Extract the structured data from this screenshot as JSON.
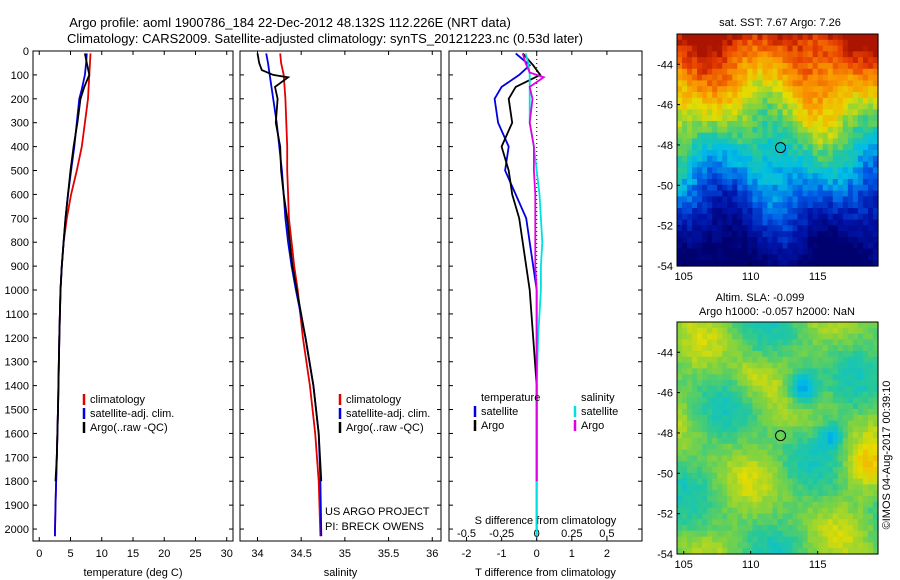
{
  "title_line1": "Argo profile: aoml 1900786_184 22-Dec-2012 48.132S 112.226E (NRT data)",
  "title_line2": "Climatology: CARS2009. Satellite-adjusted climatology: synTS_20121223.nc (0.53d later)",
  "credit_line1": "US ARGO PROJECT",
  "credit_line2": "PI: BRECK OWENS",
  "imos_stamp": "©IMOS 04-Aug-2017 00:39:10",
  "sst_title": "sat. SST: 7.67 Argo: 7.26",
  "sla_title1": "Altim. SLA: -0.099",
  "sla_title2": "Argo h1000: -0.057 h2000: NaN",
  "colors": {
    "climatology": "#e00000",
    "satellite": "#0000e0",
    "argo": "#000000",
    "sat_s": "#00e0e0",
    "argo_s": "#e000e0"
  },
  "chart_data": [
    {
      "type": "line",
      "xlabel": "temperature (deg C)",
      "xlim": [
        -1,
        31
      ],
      "xticks": [
        "0",
        "5",
        "10",
        "15",
        "20",
        "25",
        "30"
      ],
      "ylim": [
        0,
        2050
      ],
      "yticks": [
        "0",
        "100",
        "200",
        "300",
        "400",
        "500",
        "600",
        "700",
        "800",
        "900",
        "1000",
        "1100",
        "1200",
        "1300",
        "1400",
        "1500",
        "1600",
        "1700",
        "1800",
        "1900",
        "2000"
      ],
      "legend": [
        "climatology",
        "satellite-adj. clim.",
        "Argo(..raw -QC)"
      ],
      "series": [
        {
          "name": "climatology",
          "color": "#e00000",
          "points": [
            [
              8.2,
              10
            ],
            [
              8.0,
              100
            ],
            [
              7.8,
              200
            ],
            [
              7.3,
              300
            ],
            [
              6.8,
              400
            ],
            [
              6.0,
              500
            ],
            [
              5.1,
              600
            ],
            [
              4.4,
              700
            ],
            [
              3.9,
              800
            ],
            [
              3.6,
              900
            ],
            [
              3.4,
              1000
            ],
            [
              3.2,
              1200
            ],
            [
              3.0,
              1500
            ],
            [
              2.8,
              1700
            ],
            [
              2.6,
              1900
            ],
            [
              2.5,
              2030
            ]
          ]
        },
        {
          "name": "satellite-adj. clim.",
          "color": "#0000e0",
          "points": [
            [
              7.6,
              10
            ],
            [
              7.5,
              50
            ],
            [
              7.3,
              100
            ],
            [
              6.8,
              160
            ],
            [
              6.4,
              200
            ],
            [
              6.0,
              300
            ],
            [
              5.6,
              400
            ],
            [
              5.1,
              500
            ],
            [
              4.6,
              600
            ],
            [
              4.2,
              700
            ],
            [
              3.9,
              800
            ],
            [
              3.6,
              900
            ],
            [
              3.4,
              1000
            ],
            [
              3.2,
              1200
            ],
            [
              3.0,
              1500
            ],
            [
              2.8,
              1700
            ],
            [
              2.6,
              1900
            ],
            [
              2.5,
              2030
            ]
          ]
        },
        {
          "name": "Argo(..raw -QC)",
          "color": "#000000",
          "points": [
            [
              7.3,
              10
            ],
            [
              7.6,
              50
            ],
            [
              8.0,
              100
            ],
            [
              7.2,
              150
            ],
            [
              6.6,
              200
            ],
            [
              6.1,
              300
            ],
            [
              5.5,
              400
            ],
            [
              5.0,
              500
            ],
            [
              4.6,
              600
            ],
            [
              4.2,
              700
            ],
            [
              3.9,
              800
            ],
            [
              3.6,
              900
            ],
            [
              3.4,
              1000
            ],
            [
              3.2,
              1200
            ],
            [
              3.0,
              1500
            ],
            [
              2.8,
              1700
            ],
            [
              2.6,
              1800
            ]
          ]
        }
      ]
    },
    {
      "type": "line",
      "xlabel": "salinity",
      "xlim": [
        33.8,
        36.1
      ],
      "xticks": [
        "34",
        "34.5",
        "35",
        "35.5",
        "36"
      ],
      "ylim": [
        0,
        2050
      ],
      "legend": [
        "climatology",
        "satellite-adj. clim.",
        "Argo(..raw -QC)"
      ],
      "series": [
        {
          "name": "climatology",
          "color": "#e00000",
          "points": [
            [
              34.26,
              10
            ],
            [
              34.27,
              50
            ],
            [
              34.3,
              100
            ],
            [
              34.32,
              200
            ],
            [
              34.33,
              300
            ],
            [
              34.34,
              400
            ],
            [
              34.34,
              500
            ],
            [
              34.35,
              600
            ],
            [
              34.36,
              700
            ],
            [
              34.39,
              800
            ],
            [
              34.42,
              900
            ],
            [
              34.46,
              1000
            ],
            [
              34.52,
              1200
            ],
            [
              34.6,
              1400
            ],
            [
              34.66,
              1600
            ],
            [
              34.7,
              1800
            ],
            [
              34.72,
              2030
            ]
          ]
        },
        {
          "name": "satellite-adj. clim.",
          "color": "#0000e0",
          "points": [
            [
              34.1,
              10
            ],
            [
              34.12,
              50
            ],
            [
              34.14,
              100
            ],
            [
              34.18,
              200
            ],
            [
              34.22,
              300
            ],
            [
              34.25,
              400
            ],
            [
              34.28,
              500
            ],
            [
              34.3,
              600
            ],
            [
              34.32,
              700
            ],
            [
              34.35,
              800
            ],
            [
              34.39,
              900
            ],
            [
              34.44,
              1000
            ],
            [
              34.55,
              1200
            ],
            [
              34.64,
              1400
            ],
            [
              34.7,
              1600
            ],
            [
              34.72,
              1800
            ],
            [
              34.73,
              2030
            ]
          ]
        },
        {
          "name": "Argo(..raw -QC)",
          "color": "#000000",
          "points": [
            [
              34.0,
              10
            ],
            [
              34.02,
              50
            ],
            [
              34.05,
              80
            ],
            [
              34.18,
              100
            ],
            [
              34.35,
              110
            ],
            [
              34.2,
              150
            ],
            [
              34.23,
              200
            ],
            [
              34.21,
              300
            ],
            [
              34.26,
              400
            ],
            [
              34.27,
              500
            ],
            [
              34.3,
              600
            ],
            [
              34.34,
              700
            ],
            [
              34.37,
              800
            ],
            [
              34.4,
              900
            ],
            [
              34.45,
              1000
            ],
            [
              34.55,
              1200
            ],
            [
              34.64,
              1400
            ],
            [
              34.7,
              1600
            ],
            [
              34.73,
              1800
            ]
          ]
        }
      ]
    },
    {
      "type": "line",
      "xlabel": "T difference from climatology",
      "xlim": [
        -2.5,
        3.0
      ],
      "xticks": [
        "-2",
        "-1",
        "0",
        "1",
        "2"
      ],
      "top_xlabel": "S difference from climatology",
      "top_xticks": [
        "-0.5",
        "-0.25",
        "0",
        "0.25",
        "0.5"
      ],
      "top_xlim": [
        -0.625,
        0.75
      ],
      "ylim": [
        0,
        2050
      ],
      "legend_left_title": "temperature",
      "legend_right_title": "salinity",
      "legend_left": [
        "satellite",
        "Argo"
      ],
      "legend_right": [
        "satellite",
        "Argo"
      ],
      "series": [
        {
          "name": "temperature satellite",
          "color": "#0000e0",
          "axis": "T",
          "points": [
            [
              -0.6,
              10
            ],
            [
              -0.2,
              60
            ],
            [
              -0.5,
              100
            ],
            [
              -1.0,
              150
            ],
            [
              -1.2,
              200
            ],
            [
              -1.1,
              300
            ],
            [
              -0.8,
              400
            ],
            [
              -0.9,
              500
            ],
            [
              -0.6,
              600
            ],
            [
              -0.3,
              700
            ],
            [
              -0.2,
              800
            ],
            [
              -0.1,
              900
            ],
            [
              0,
              1000
            ],
            [
              0,
              1300
            ],
            [
              0,
              1600
            ],
            [
              0,
              1800
            ],
            [
              0,
              2030
            ]
          ]
        },
        {
          "name": "temperature Argo",
          "color": "#000000",
          "axis": "T",
          "points": [
            [
              -0.4,
              10
            ],
            [
              -0.1,
              60
            ],
            [
              0.1,
              100
            ],
            [
              -0.6,
              150
            ],
            [
              -0.8,
              200
            ],
            [
              -0.7,
              300
            ],
            [
              -1.0,
              400
            ],
            [
              -0.8,
              500
            ],
            [
              -0.7,
              600
            ],
            [
              -0.5,
              700
            ],
            [
              -0.4,
              800
            ],
            [
              -0.3,
              900
            ],
            [
              -0.2,
              1000
            ],
            [
              -0.1,
              1200
            ],
            [
              0,
              1400
            ],
            [
              0,
              1600
            ],
            [
              0,
              1800
            ]
          ]
        },
        {
          "name": "salinity satellite",
          "color": "#00e0e0",
          "axis": "S",
          "points": [
            [
              -0.08,
              10
            ],
            [
              -0.06,
              50
            ],
            [
              -0.05,
              100
            ],
            [
              -0.05,
              200
            ],
            [
              -0.05,
              300
            ],
            [
              -0.02,
              400
            ],
            [
              0.0,
              500
            ],
            [
              0.02,
              600
            ],
            [
              0.03,
              700
            ],
            [
              0.04,
              800
            ],
            [
              0.03,
              900
            ],
            [
              0.03,
              1000
            ],
            [
              0.02,
              1100
            ],
            [
              0.01,
              1200
            ],
            [
              0.0,
              1400
            ],
            [
              0.0,
              1600
            ],
            [
              0.0,
              1800
            ],
            [
              0.0,
              2030
            ]
          ]
        },
        {
          "name": "salinity Argo",
          "color": "#e000e0",
          "axis": "S",
          "points": [
            [
              -0.1,
              10
            ],
            [
              -0.08,
              50
            ],
            [
              -0.05,
              90
            ],
            [
              0.05,
              110
            ],
            [
              -0.05,
              150
            ],
            [
              -0.03,
              200
            ],
            [
              -0.05,
              300
            ],
            [
              -0.02,
              400
            ],
            [
              -0.02,
              500
            ],
            [
              -0.01,
              600
            ],
            [
              -0.01,
              700
            ],
            [
              -0.01,
              800
            ],
            [
              -0.01,
              900
            ],
            [
              0.0,
              1000
            ],
            [
              0.0,
              1200
            ],
            [
              0.0,
              1400
            ],
            [
              0.0,
              1600
            ],
            [
              0.0,
              1800
            ]
          ]
        }
      ]
    },
    {
      "type": "heatmap",
      "title": "sat. SST: 7.67 Argo: 7.26",
      "xticks": [
        "105",
        "110",
        "115"
      ],
      "yticks": [
        "-44",
        "-46",
        "-48",
        "-50",
        "-52",
        "-54"
      ],
      "xlim": [
        104.5,
        119.5
      ],
      "ylim": [
        -54,
        -42.5
      ],
      "marker": {
        "lon": 112.226,
        "lat": -48.132
      }
    },
    {
      "type": "heatmap",
      "title": "Altim. SLA: -0.099 / Argo h1000: -0.057 h2000: NaN",
      "xticks": [
        "105",
        "110",
        "115"
      ],
      "yticks": [
        "-44",
        "-46",
        "-48",
        "-50",
        "-52",
        "-54"
      ],
      "xlim": [
        104.5,
        119.5
      ],
      "ylim": [
        -54,
        -42.5
      ],
      "marker": {
        "lon": 112.226,
        "lat": -48.132
      }
    }
  ]
}
